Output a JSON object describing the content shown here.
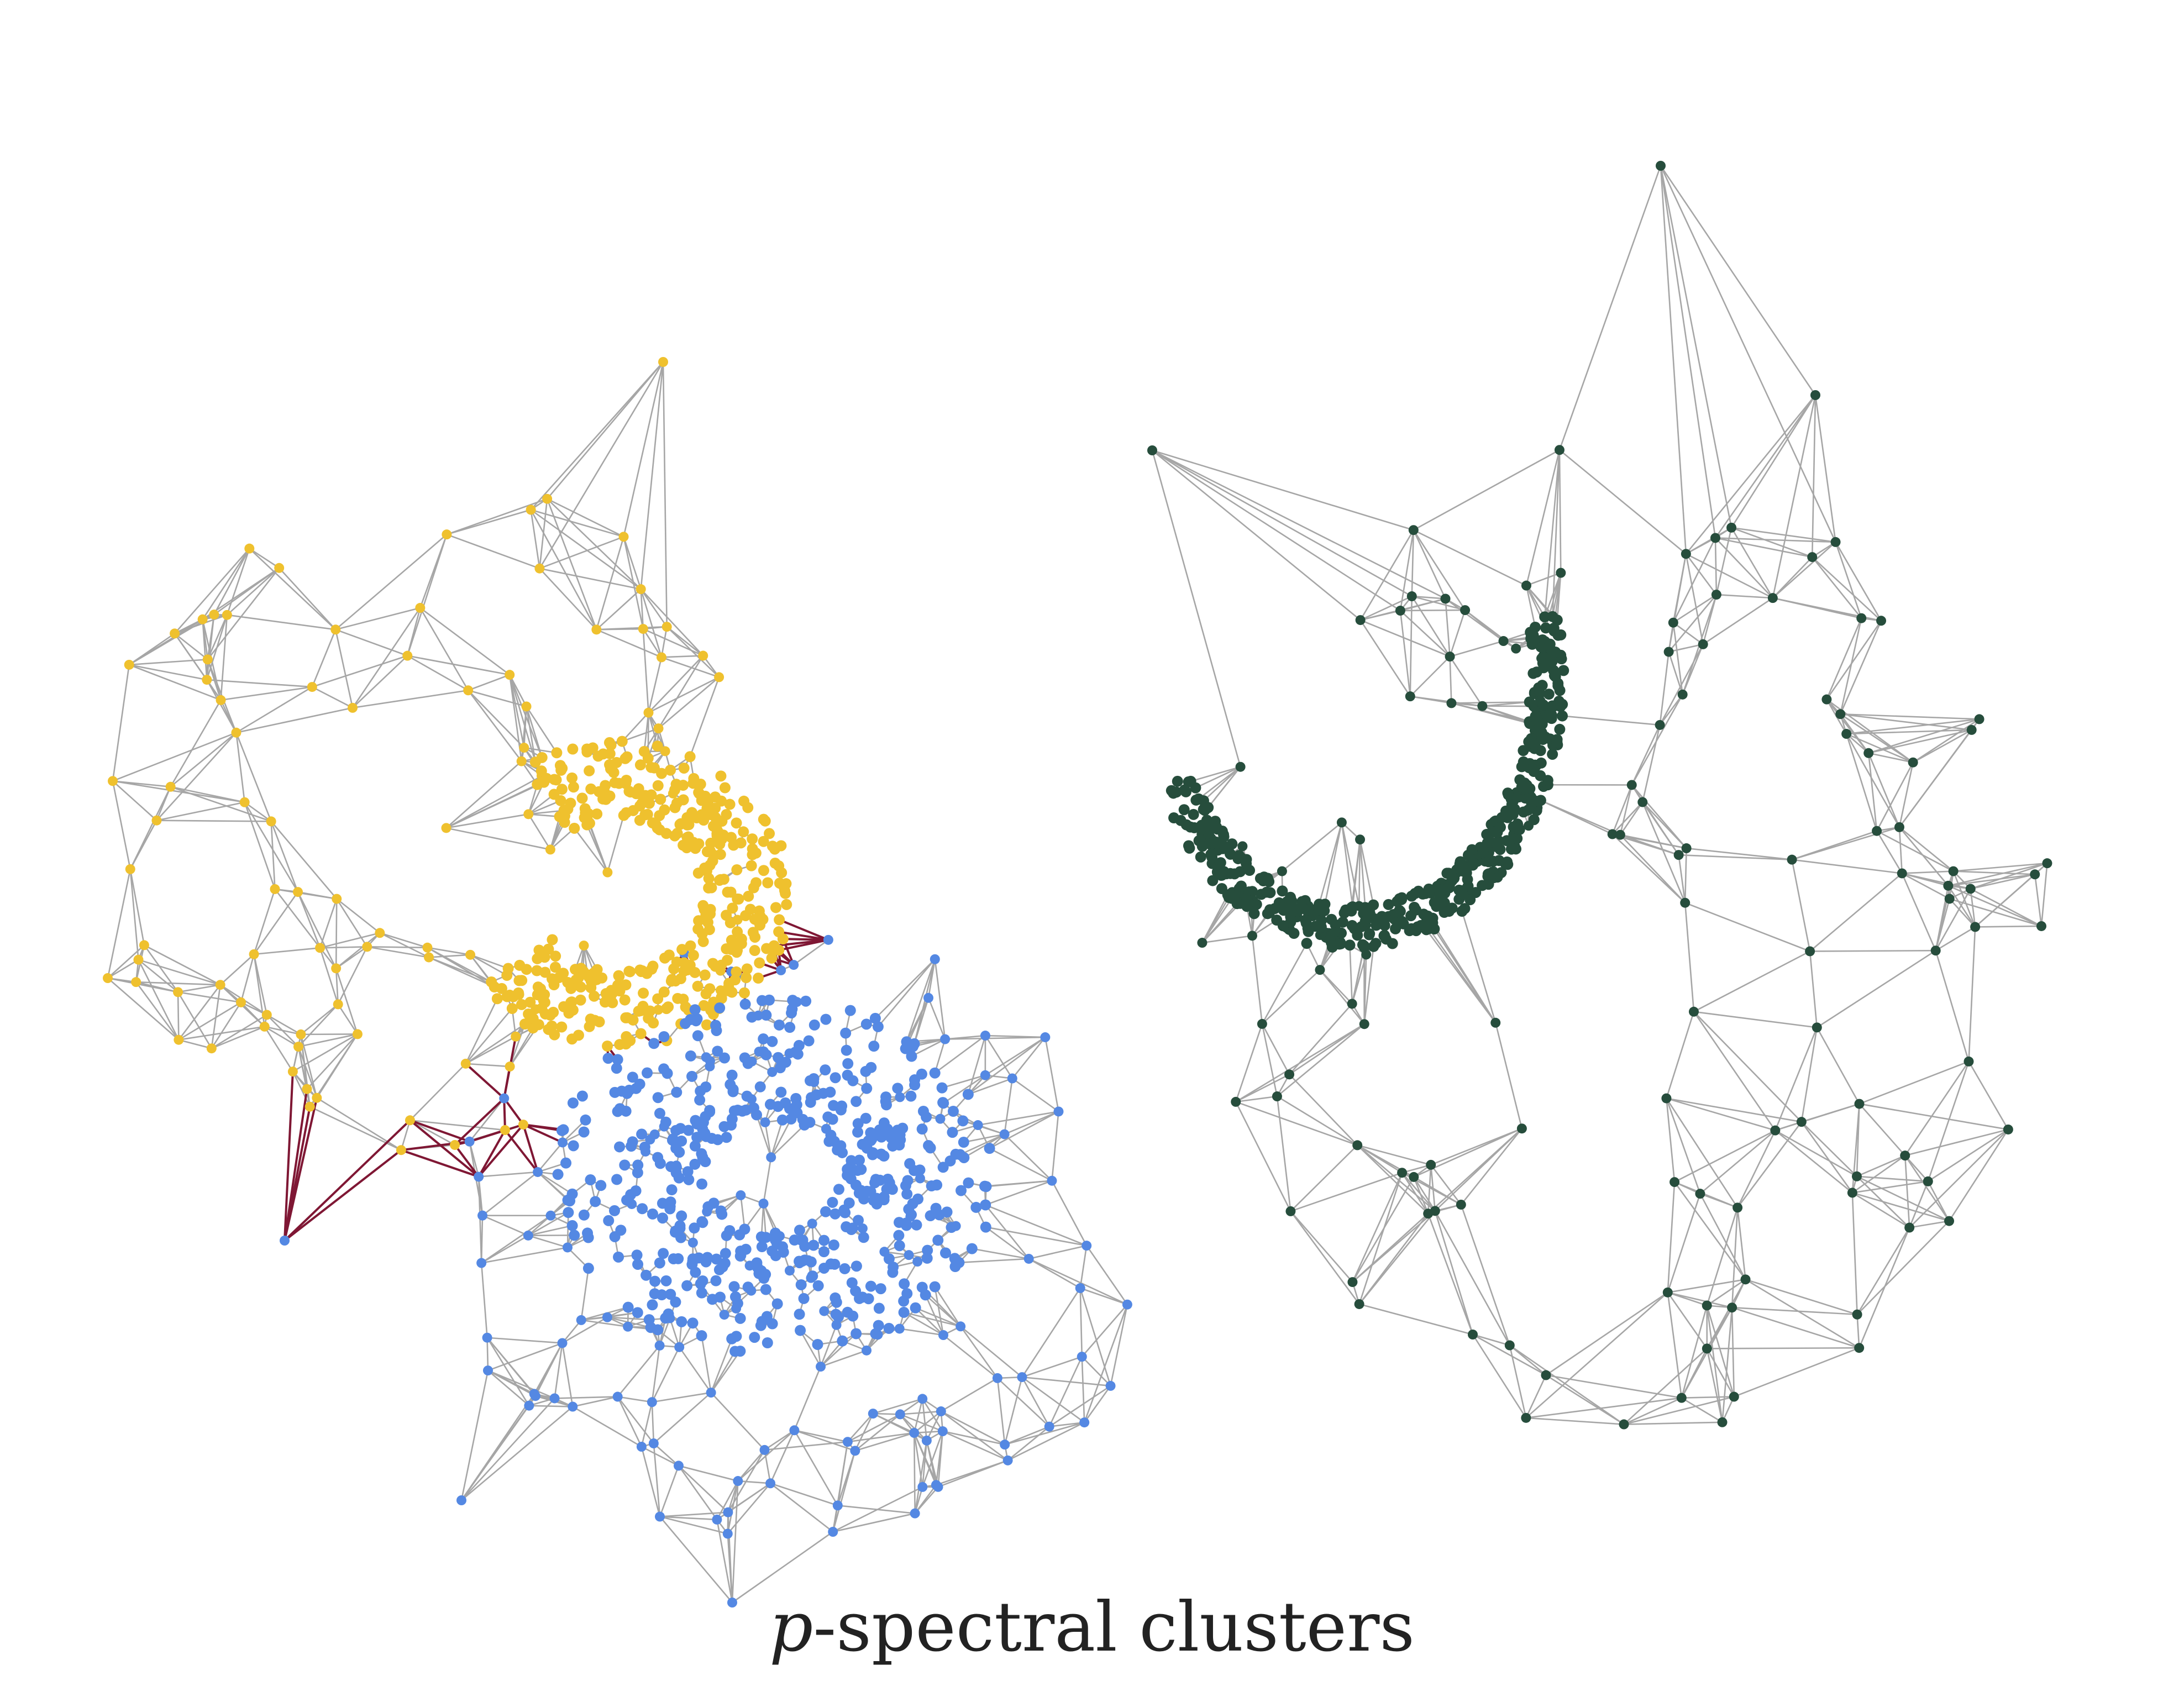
{
  "caption": {
    "math": "p",
    "text": "-spectral clusters"
  },
  "colors": {
    "edge": "#a6a6a6",
    "cut_edge": "#7f1734",
    "cluster_yellow": "#efc12e",
    "cluster_blue": "#5488e3",
    "cluster_green": "#264d3c"
  },
  "clusters": [
    {
      "id": "yellow",
      "color": "cluster_yellow"
    },
    {
      "id": "blue",
      "color": "cluster_blue"
    },
    {
      "id": "green",
      "color": "cluster_green"
    }
  ]
}
